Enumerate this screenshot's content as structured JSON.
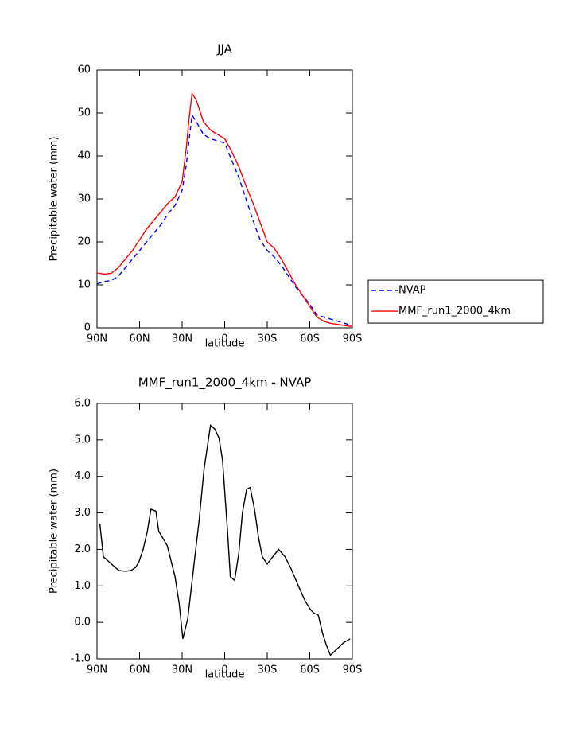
{
  "chart_data": [
    {
      "type": "line",
      "title": "JJA",
      "x_label": "latitude",
      "y_label": "Precipitable water (mm)",
      "x": [
        90,
        85,
        80,
        75,
        70,
        65,
        60,
        55,
        50,
        45,
        40,
        35,
        30,
        27,
        25,
        23,
        20,
        15,
        10,
        5,
        0,
        -5,
        -10,
        -15,
        -20,
        -25,
        -30,
        -35,
        -40,
        -45,
        -50,
        -55,
        -60,
        -65,
        -70,
        -75,
        -80,
        -85,
        -90
      ],
      "series": [
        {
          "name": "NVAP",
          "color": "#0000ff",
          "style": "dashed",
          "values": [
            10.2,
            10.8,
            11,
            12,
            14,
            16,
            18,
            20,
            22,
            24,
            26.5,
            28.5,
            32,
            38,
            44,
            49.5,
            48,
            45,
            44,
            43.5,
            43,
            39,
            35,
            30,
            25,
            20.5,
            18,
            16.5,
            14.5,
            12,
            9.5,
            7.5,
            5.5,
            3,
            2.5,
            2,
            1.5,
            1,
            0.5
          ]
        },
        {
          "name": "MMF_run1_2000_4km",
          "color": "#ff0000",
          "style": "solid",
          "values": [
            12.8,
            12.5,
            12.7,
            14,
            16,
            18,
            20.5,
            23,
            25,
            27,
            29,
            30.5,
            34,
            42,
            49,
            54.5,
            53,
            48,
            46,
            45,
            44,
            41,
            37.5,
            33,
            29,
            24.5,
            20,
            18.5,
            16,
            13,
            10,
            7.5,
            5,
            2.5,
            1.5,
            1,
            0.8,
            0.5,
            0.3
          ]
        }
      ],
      "xlim": [
        90,
        -90
      ],
      "xticks": [
        {
          "value": 90,
          "label": "90N"
        },
        {
          "value": 60,
          "label": "60N"
        },
        {
          "value": 30,
          "label": "30N"
        },
        0,
        {
          "value": -30,
          "label": "30S"
        },
        {
          "value": -60,
          "label": "60S"
        },
        {
          "value": -90,
          "label": "90S"
        }
      ],
      "ylim": [
        0,
        60
      ],
      "yticks": [
        0,
        10,
        20,
        30,
        40,
        50,
        60
      ],
      "grid": false,
      "legend": "right"
    },
    {
      "type": "line",
      "title": "MMF_run1_2000_4km - NVAP",
      "x_label": "latitude",
      "y_label": "Precipitable water (mm)",
      "x": [
        88,
        85.5,
        77,
        74.5,
        70,
        66,
        63,
        60.5,
        57.5,
        54.5,
        52,
        48.5,
        46.5,
        40.5,
        35,
        32,
        29.5,
        26,
        22.5,
        18,
        14.5,
        10,
        7,
        4,
        1.5,
        -2,
        -4,
        -7,
        -10,
        -12.5,
        -15.5,
        -18,
        -21,
        -24,
        -26.5,
        -30,
        -34,
        -38,
        -42.5,
        -46.5,
        -52,
        -56.5,
        -60.5,
        -63,
        -66,
        -69,
        -71.5,
        -74.5,
        -80,
        -84,
        -88.5
      ],
      "series": [
        {
          "name": "MMF_run1_2000_4km - NVAP",
          "color": "#000000",
          "style": "solid",
          "values": [
            2.7,
            1.8,
            1.5,
            1.42,
            1.4,
            1.42,
            1.5,
            1.65,
            2.0,
            2.5,
            3.1,
            3.05,
            2.5,
            2.1,
            1.25,
            0.5,
            -0.45,
            0.1,
            1.3,
            2.8,
            4.2,
            5.4,
            5.3,
            5.05,
            4.45,
            2.5,
            1.25,
            1.15,
            1.9,
            3.0,
            3.65,
            3.7,
            3.1,
            2.3,
            1.8,
            1.6,
            1.8,
            2.0,
            1.8,
            1.5,
            1.0,
            0.6,
            0.35,
            0.25,
            0.2,
            -0.3,
            -0.6,
            -0.9,
            -0.7,
            -0.55,
            -0.45
          ]
        }
      ],
      "xlim": [
        90,
        -90
      ],
      "xticks": [
        {
          "value": 90,
          "label": "90N"
        },
        {
          "value": 60,
          "label": "60N"
        },
        {
          "value": 30,
          "label": "30N"
        },
        0,
        {
          "value": -30,
          "label": "30S"
        },
        {
          "value": -60,
          "label": "60S"
        },
        {
          "value": -90,
          "label": "90S"
        }
      ],
      "ylim": [
        -1,
        6
      ],
      "yticks": [
        {
          "value": -1,
          "label": "-1.0"
        },
        {
          "value": 0,
          "label": "0.0"
        },
        {
          "value": 1,
          "label": "1.0"
        },
        {
          "value": 2,
          "label": "2.0"
        },
        {
          "value": 3,
          "label": "3.0"
        },
        {
          "value": 4,
          "label": "4.0"
        },
        {
          "value": 5,
          "label": "5.0"
        },
        {
          "value": 6,
          "label": "6.0"
        }
      ],
      "grid": false
    }
  ]
}
